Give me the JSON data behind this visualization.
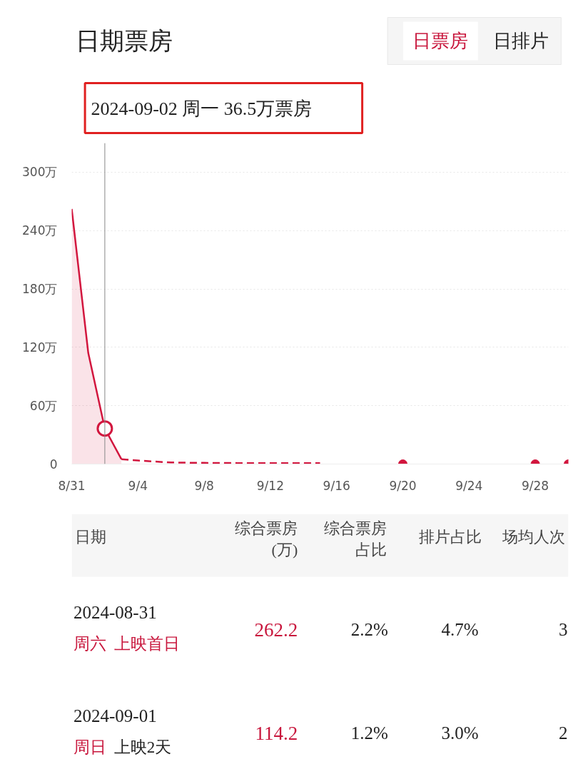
{
  "chart_data": {
    "type": "line",
    "title": "日期票房",
    "xlim": [
      "2024-08-31",
      "2024-09-30"
    ],
    "xticks": [
      {
        "value": "2024-08-31",
        "label": "8/31"
      },
      {
        "value": "2024-09-04",
        "label": "9/4"
      },
      {
        "value": "2024-09-08",
        "label": "9/8"
      },
      {
        "value": "2024-09-12",
        "label": "9/12"
      },
      {
        "value": "2024-09-16",
        "label": "9/16"
      },
      {
        "value": "2024-09-20",
        "label": "9/20"
      },
      {
        "value": "2024-09-24",
        "label": "9/24"
      },
      {
        "value": "2024-09-28",
        "label": "9/28"
      }
    ],
    "ylim": [
      0,
      330
    ],
    "yticks": [
      0,
      {
        "value": 60,
        "label": "60万"
      },
      {
        "value": 120,
        "label": "120万"
      },
      {
        "value": 180,
        "label": "180万"
      },
      {
        "value": 240,
        "label": "240万"
      },
      {
        "value": 300,
        "label": "300万"
      }
    ],
    "grid": "y",
    "series": [
      {
        "type": "area",
        "color": "#d2163e",
        "line_style": "solid",
        "x": [
          "2024-08-31",
          "2024-09-01",
          "2024-09-02",
          "2024-09-03"
        ],
        "values": [
          262.2,
          114.2,
          36.5,
          5
        ]
      },
      {
        "color": "#d2163e",
        "line_style": "dashed",
        "x": [
          "2024-09-03",
          "2024-09-04",
          "2024-09-05",
          "2024-09-06",
          "2024-09-07",
          "2024-09-08",
          "2024-09-09",
          "2024-09-10",
          "2024-09-11",
          "2024-09-12",
          "2024-09-13",
          "2024-09-14",
          "2024-09-15"
        ],
        "values": [
          5,
          3.7,
          2.6,
          1.6,
          1.4,
          1.2,
          1.1,
          1,
          1,
          1,
          1,
          1,
          1
        ]
      },
      {
        "type": "scatter",
        "color": "#d2163e",
        "x": [
          "2024-09-20",
          "2024-09-28",
          "2024-09-30"
        ],
        "values": [
          0,
          0,
          0
        ]
      }
    ],
    "ref_lines": [
      {
        "axis": "x",
        "value": "2024-09-02",
        "color": "#888888"
      }
    ],
    "annotations": [
      "日票房",
      "日排片",
      "2024-09-02  周一  36.5万票房",
      "日期",
      "综合票房",
      "(万)",
      "综合票房",
      "占比",
      "排片占比",
      "场均人次",
      "2024-08-31",
      "周六",
      "上映首日",
      "262.2",
      "2.2%",
      "4.7%",
      "3",
      "2024-09-01",
      "周日",
      "上映2天",
      "114.2",
      "1.2%",
      "3.0%",
      "2"
    ]
  }
}
